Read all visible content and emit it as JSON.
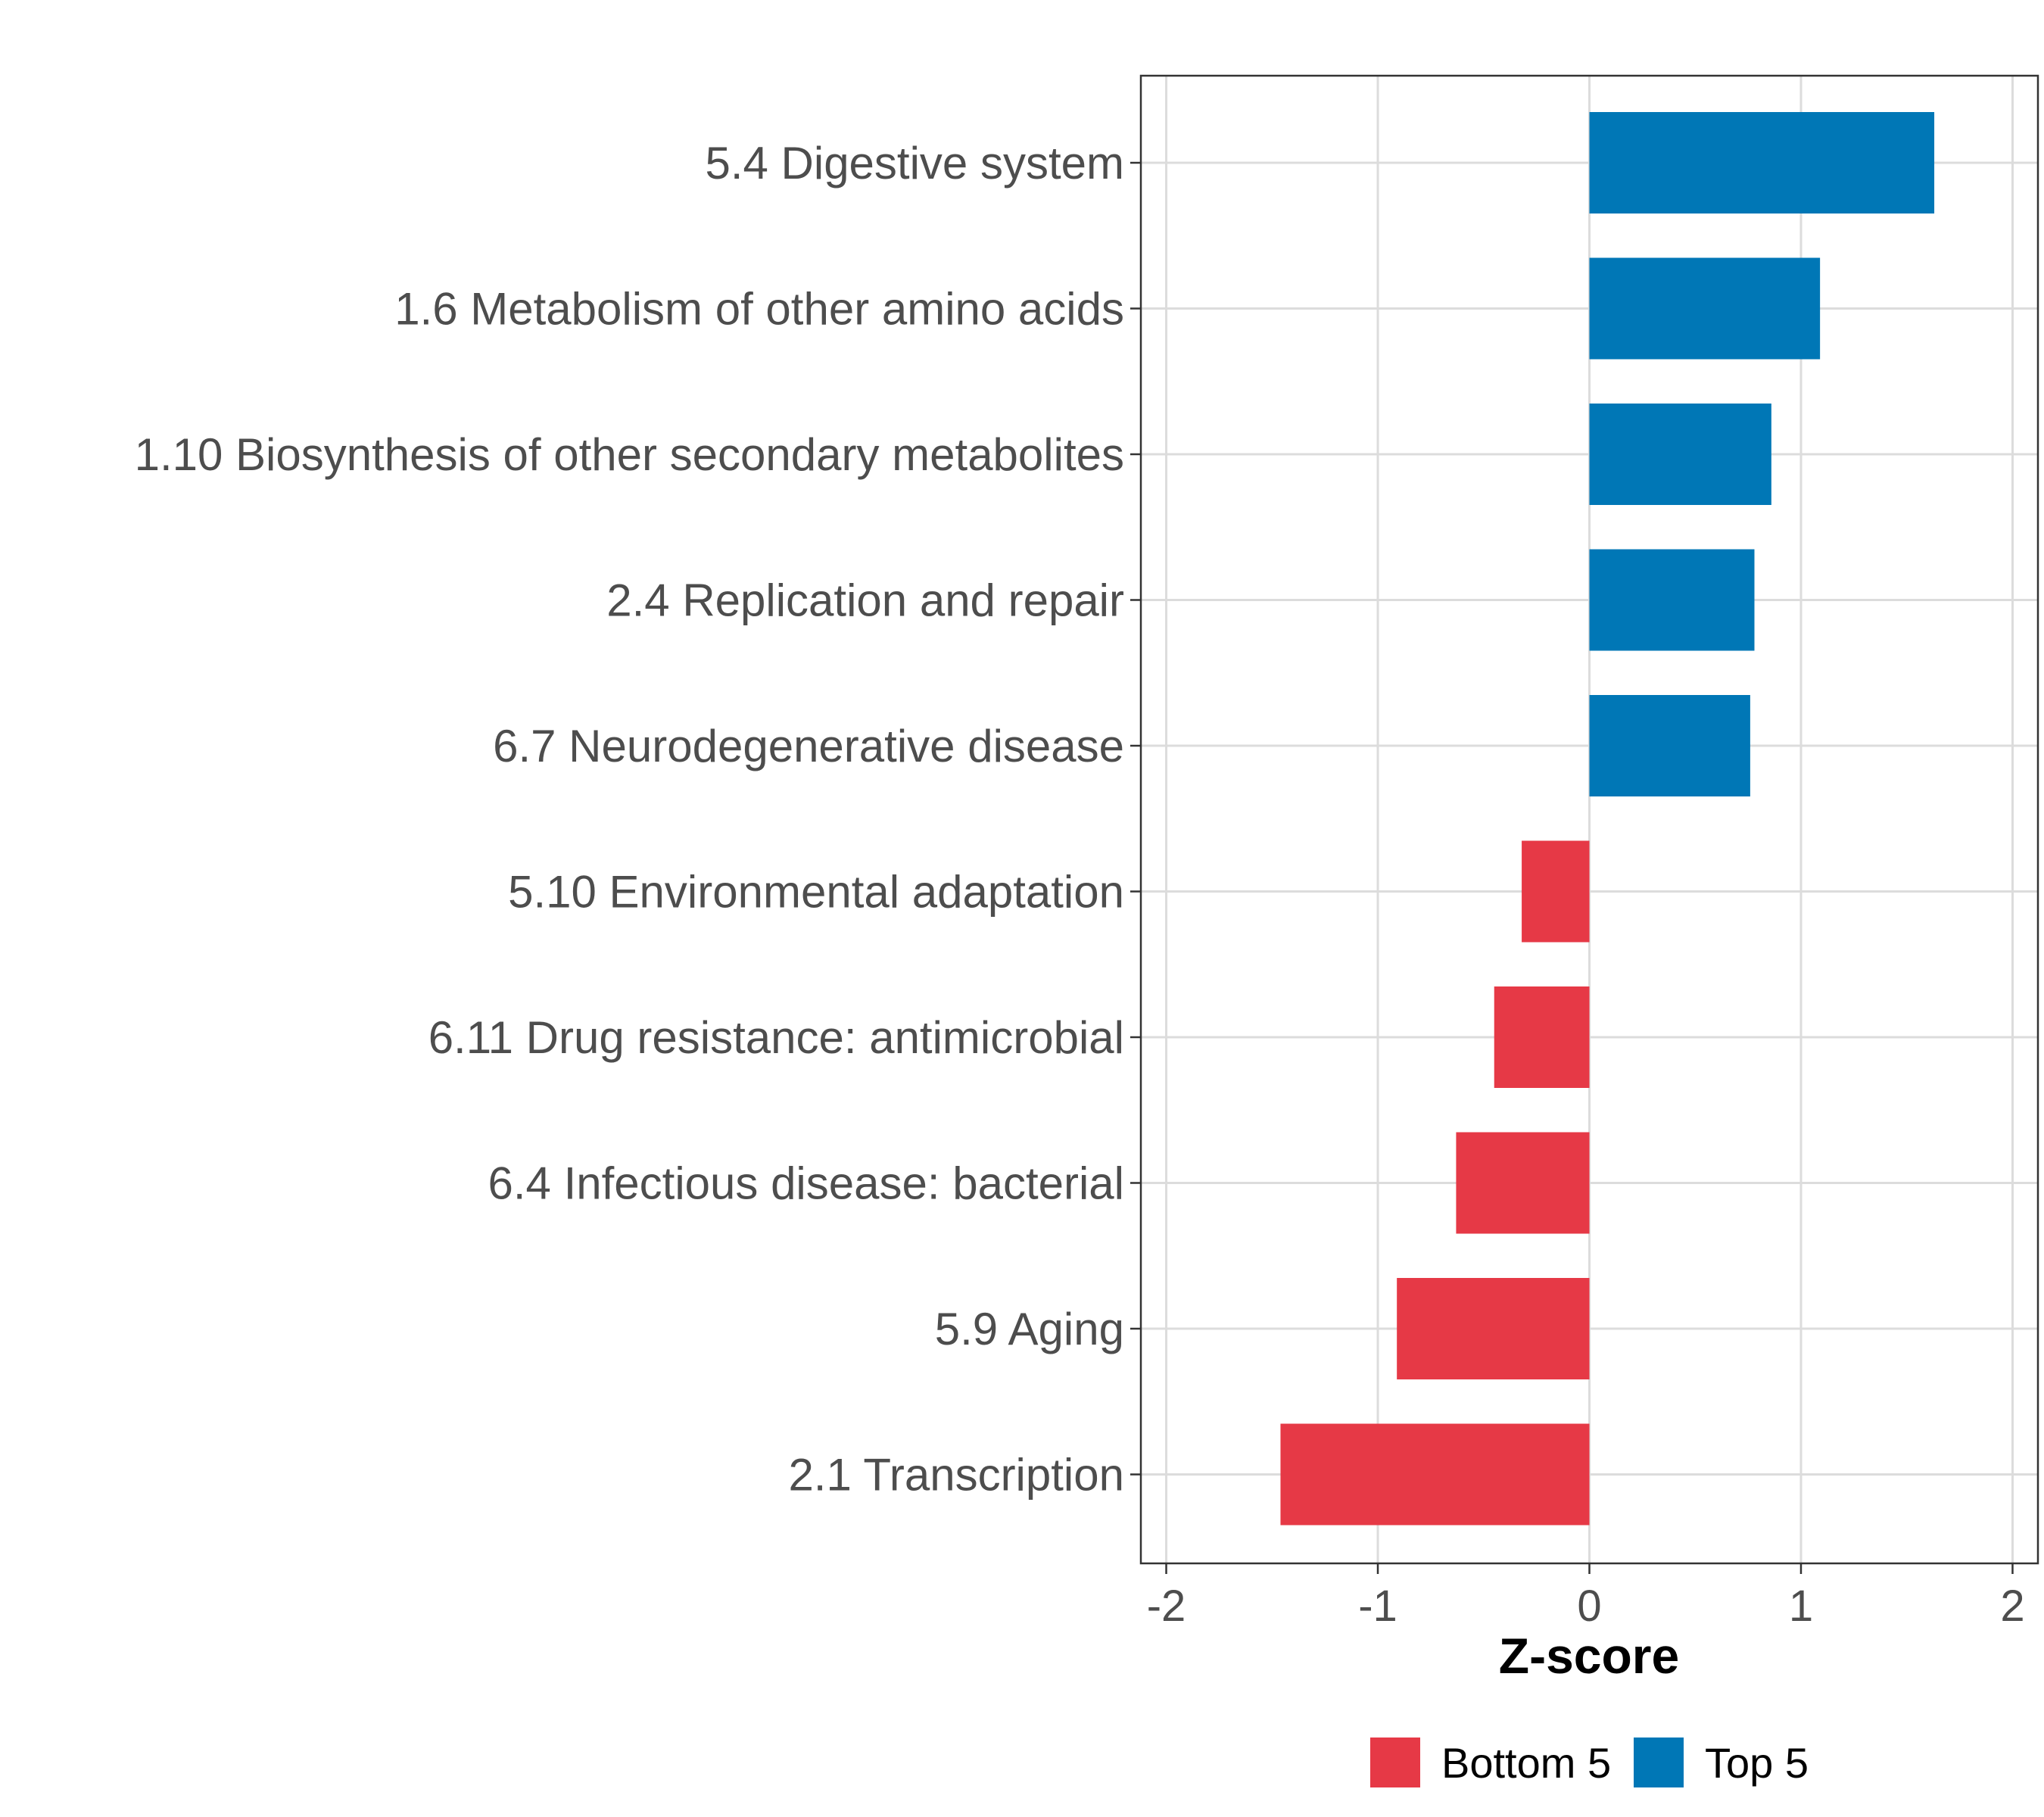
{
  "chart_data": {
    "type": "bar",
    "orientation": "horizontal",
    "categories": [
      "5.4 Digestive system",
      "1.6 Metabolism of other amino acids",
      "1.10 Biosynthesis of other secondary metabolites",
      "2.4 Replication and repair",
      "6.7 Neurodegenerative disease",
      "5.10 Environmental adaptation",
      "6.11 Drug resistance: antimicrobial",
      "6.4 Infectious disease: bacterial",
      "5.9 Aging",
      "2.1 Transcription"
    ],
    "values": [
      1.63,
      1.09,
      0.86,
      0.78,
      0.76,
      -0.32,
      -0.45,
      -0.63,
      -0.91,
      -1.46
    ],
    "groups": [
      "Top 5",
      "Top 5",
      "Top 5",
      "Top 5",
      "Top 5",
      "Bottom 5",
      "Bottom 5",
      "Bottom 5",
      "Bottom 5",
      "Bottom 5"
    ],
    "xlabel": "Z-score",
    "ylabel": "",
    "xlim": [
      -2.12,
      2.12
    ],
    "xticks": [
      -2,
      -1,
      0,
      1,
      2
    ],
    "xtick_labels": [
      "-2",
      "-1",
      "0",
      "1",
      "2"
    ],
    "grid": true,
    "legend": {
      "position": "bottom",
      "entries": [
        {
          "label": "Bottom 5",
          "color": "#e63946"
        },
        {
          "label": "Top 5",
          "color": "#0077b6"
        }
      ]
    }
  }
}
